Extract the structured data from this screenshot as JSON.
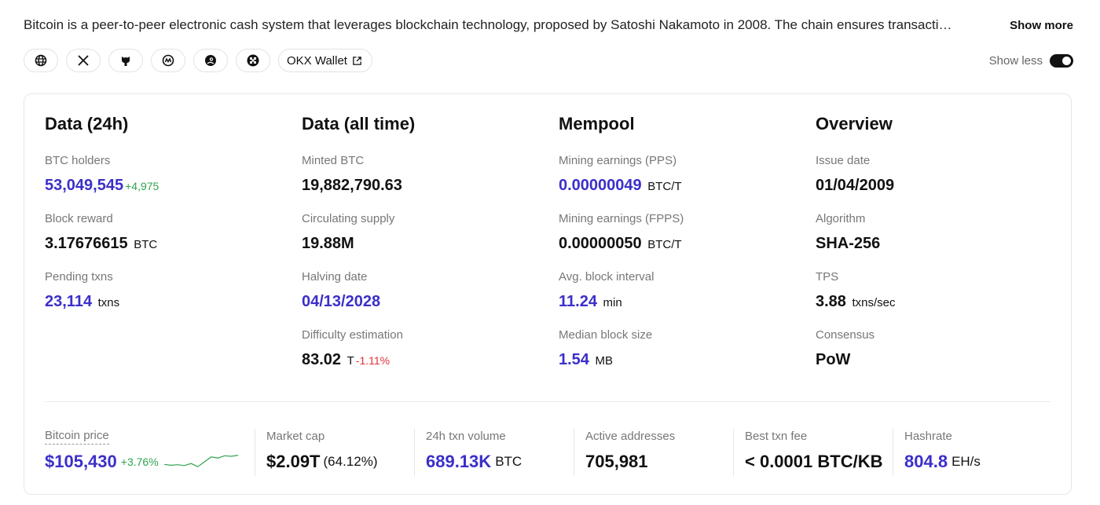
{
  "description": {
    "text": "Bitcoin is a peer-to-peer electronic cash system that leverages blockchain technology, proposed by Satoshi Nakamoto in 2008. The chain ensures transacti…",
    "show_more": "Show more"
  },
  "links": {
    "icons": [
      "globe-icon",
      "x-twitter-icon",
      "github-icon",
      "coinmarketcap-icon",
      "coingecko-icon",
      "okx-icon"
    ],
    "wallet_label": "OKX Wallet",
    "show_less": "Show less"
  },
  "columns": {
    "data24h": {
      "title": "Data (24h)",
      "items": [
        {
          "label": "BTC holders",
          "value": "53,049,545",
          "change": "+4,975"
        },
        {
          "label": "Block reward",
          "value": "3.17676615",
          "unit": "BTC"
        },
        {
          "label": "Pending txns",
          "value": "23,114",
          "unit": "txns"
        }
      ]
    },
    "alltime": {
      "title": "Data (all time)",
      "items": [
        {
          "label": "Minted BTC",
          "value": "19,882,790.63"
        },
        {
          "label": "Circulating supply",
          "value": "19.88M"
        },
        {
          "label": "Halving date",
          "value": "04/13/2028"
        },
        {
          "label": "Difficulty estimation",
          "value": "83.02",
          "unit": "T",
          "change": "-1.11%"
        }
      ]
    },
    "mempool": {
      "title": "Mempool",
      "items": [
        {
          "label": "Mining earnings (PPS)",
          "value": "0.00000049",
          "unit": "BTC/T"
        },
        {
          "label": "Mining earnings (FPPS)",
          "value": "0.00000050",
          "unit": "BTC/T"
        },
        {
          "label": "Avg. block interval",
          "value": "11.24",
          "unit": "min"
        },
        {
          "label": "Median block size",
          "value": "1.54",
          "unit": "MB"
        }
      ]
    },
    "overview": {
      "title": "Overview",
      "items": [
        {
          "label": "Issue date",
          "value": "01/04/2009"
        },
        {
          "label": "Algorithm",
          "value": "SHA-256"
        },
        {
          "label": "TPS",
          "value": "3.88",
          "unit": "txns/sec"
        },
        {
          "label": "Consensus",
          "value": "PoW"
        }
      ]
    }
  },
  "stats": {
    "price": {
      "label": "Bitcoin price",
      "value": "$105,430",
      "change": "+3.76%"
    },
    "market_cap": {
      "label": "Market cap",
      "value": "$2.09T",
      "extra": "(64.12%)"
    },
    "volume": {
      "label": "24h txn volume",
      "value": "689.13K",
      "unit": "BTC"
    },
    "active": {
      "label": "Active addresses",
      "value": "705,981"
    },
    "fee": {
      "label": "Best txn fee",
      "value": "< 0.0001 BTC/KB"
    },
    "hashrate": {
      "label": "Hashrate",
      "value": "804.8",
      "unit": "EH/s"
    }
  },
  "colors": {
    "accent": "#3b2fc9",
    "positive": "#2ea44f",
    "negative": "#e0323a"
  },
  "sparkline": {
    "trend": [
      0.35,
      0.3,
      0.33,
      0.28,
      0.4,
      0.22,
      0.5,
      0.78,
      0.72,
      0.85,
      0.82,
      0.88
    ]
  }
}
